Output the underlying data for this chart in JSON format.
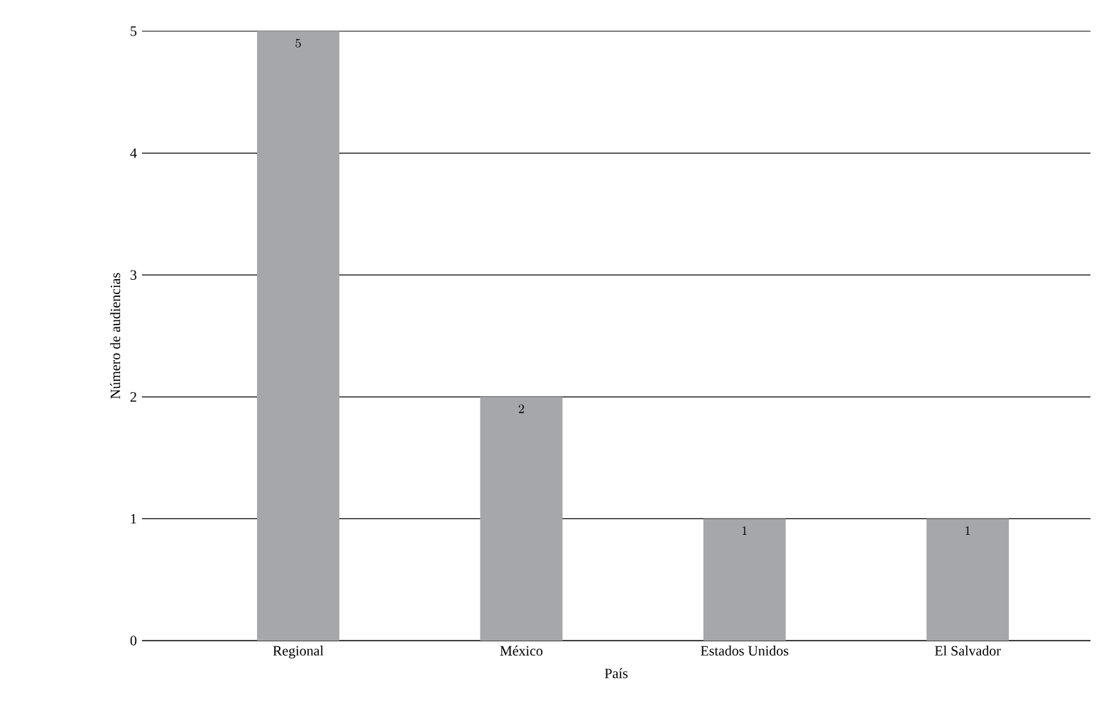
{
  "chart_data": {
    "type": "bar",
    "xlabel": "País",
    "ylabel": "Número de audiencias",
    "categories": [
      "Regional",
      "México",
      "Estados Unidos",
      "El Salvador"
    ],
    "values": [
      5,
      2,
      1,
      1
    ],
    "color": "#a6a7aa",
    "ylim": [
      0,
      5
    ],
    "yticks": [
      0,
      1,
      2,
      3,
      4,
      5
    ],
    "grid": "y",
    "data_labels": true
  }
}
